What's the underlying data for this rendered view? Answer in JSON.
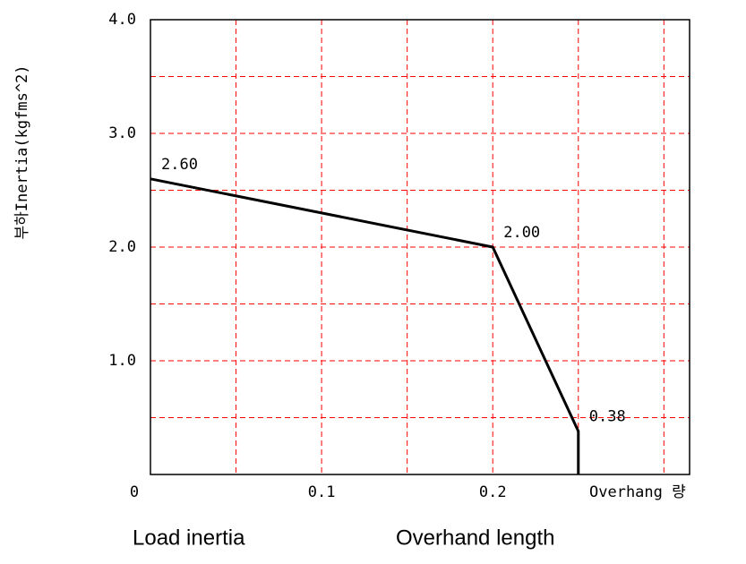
{
  "chart_data": {
    "type": "line",
    "ylabel": "부하Inertia(kgfms^2)",
    "xlabel": "Overhang 량",
    "captions": [
      "Load inertia",
      "Overhand length"
    ],
    "x": [
      0,
      0.2,
      0.25,
      0.25
    ],
    "series": [
      {
        "color": "#000000",
        "values": [
          2.6,
          2.0,
          0.38,
          0
        ],
        "value_labels": [
          "2.60",
          "2.00",
          "0.38",
          null
        ]
      }
    ],
    "xlim": [
      0,
      0.315
    ],
    "ylim": [
      0,
      4
    ],
    "xticks": [
      0,
      0.1,
      0.2
    ],
    "yticks": [
      {
        "value": 1,
        "label": "1.0"
      },
      {
        "value": 2,
        "label": "2.0"
      },
      {
        "value": 3,
        "label": "3.0"
      },
      {
        "value": 4,
        "label": "4.0"
      }
    ],
    "xminor": [
      0.05,
      0.15,
      0.25,
      0.3
    ],
    "yminor": [
      0.5,
      1.5,
      2.5,
      3.5
    ],
    "grid": true,
    "grid_color": "#ff0000"
  }
}
